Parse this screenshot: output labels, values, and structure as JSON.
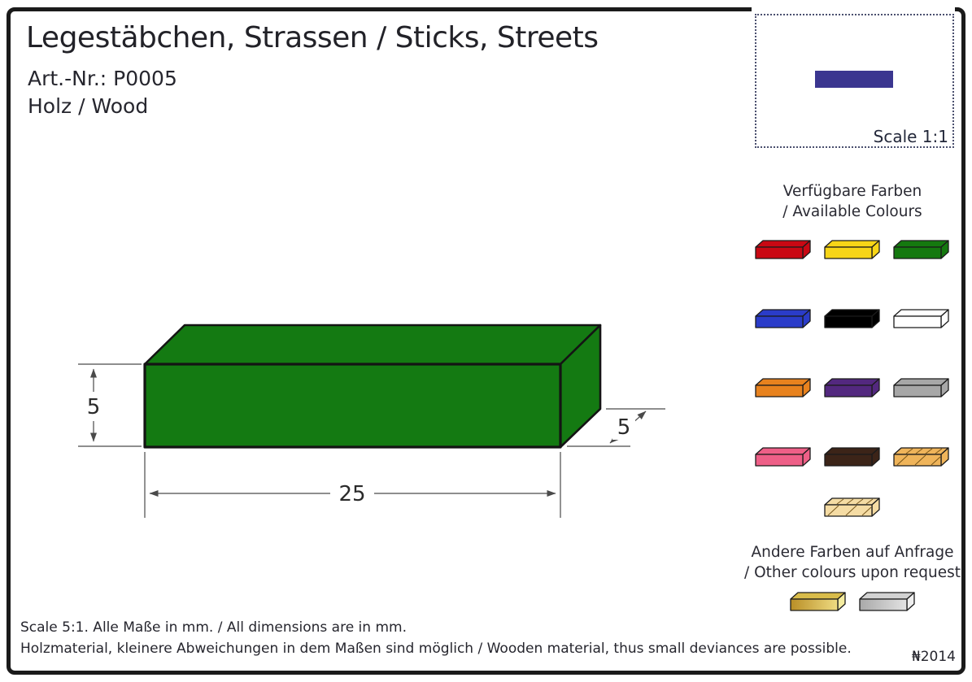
{
  "header": {
    "title": "Legestäbchen, Strassen / Sticks, Streets",
    "article_number": "Art.-Nr.: P0005",
    "material": "Holz / Wood"
  },
  "scale_box": {
    "label": "Scale 1:1",
    "stick_color": "#3B3690"
  },
  "drawing": {
    "stick_color": "#147A12",
    "length_label": "25",
    "height_label": "5",
    "depth_label": "5"
  },
  "colours_panel": {
    "heading_de": "Verfügbare Farben",
    "heading_en": "/ Available Colours",
    "rows": [
      [
        {
          "name": "red",
          "color": "#C90813",
          "finish": "solid"
        },
        {
          "name": "yellow",
          "color": "#F7D517",
          "finish": "solid"
        },
        {
          "name": "green",
          "color": "#15790F",
          "finish": "solid"
        }
      ],
      [
        {
          "name": "blue",
          "color": "#2A3CC9",
          "finish": "solid"
        },
        {
          "name": "black",
          "color": "#000000",
          "finish": "solid"
        },
        {
          "name": "white",
          "color": "#FFFFFF",
          "finish": "solid"
        }
      ],
      [
        {
          "name": "orange",
          "color": "#E8821E",
          "finish": "solid"
        },
        {
          "name": "purple",
          "color": "#53287F",
          "finish": "solid"
        },
        {
          "name": "grey",
          "color": "#A7A7A7",
          "finish": "solid"
        }
      ],
      [
        {
          "name": "pink",
          "color": "#EE5F87",
          "finish": "solid"
        },
        {
          "name": "dark-brown",
          "color": "#3C2418",
          "finish": "solid"
        },
        {
          "name": "wood-dark",
          "color": "#EFB45A",
          "finish": "wood"
        }
      ],
      [
        {
          "name": "wood-natural",
          "color": "#F5DCA4",
          "finish": "wood"
        }
      ]
    ],
    "request_de": "Andere Farben auf Anfrage",
    "request_en": "/ Other colours upon request",
    "request_rows": [
      [
        {
          "name": "gold",
          "color": "#B98E26",
          "color_light": "#EFDC82",
          "color_top": "#D9BC4A",
          "color_side": "#F4ECA0",
          "finish": "metallic"
        },
        {
          "name": "silver",
          "color": "#A9A9A9",
          "color_light": "#E3E3E3",
          "color_top": "#D2D2D2",
          "color_side": "#EFEFEF",
          "finish": "metallic"
        }
      ]
    ]
  },
  "footer": {
    "note1": "Scale 5:1. Alle Maße in mm. / All dimensions are in mm.",
    "note2": "Holzmaterial, kleinere Abweichungen in dem Maßen sind möglich / Wooden material, thus small deviances are possible.",
    "ref_mark": "₦2014"
  }
}
